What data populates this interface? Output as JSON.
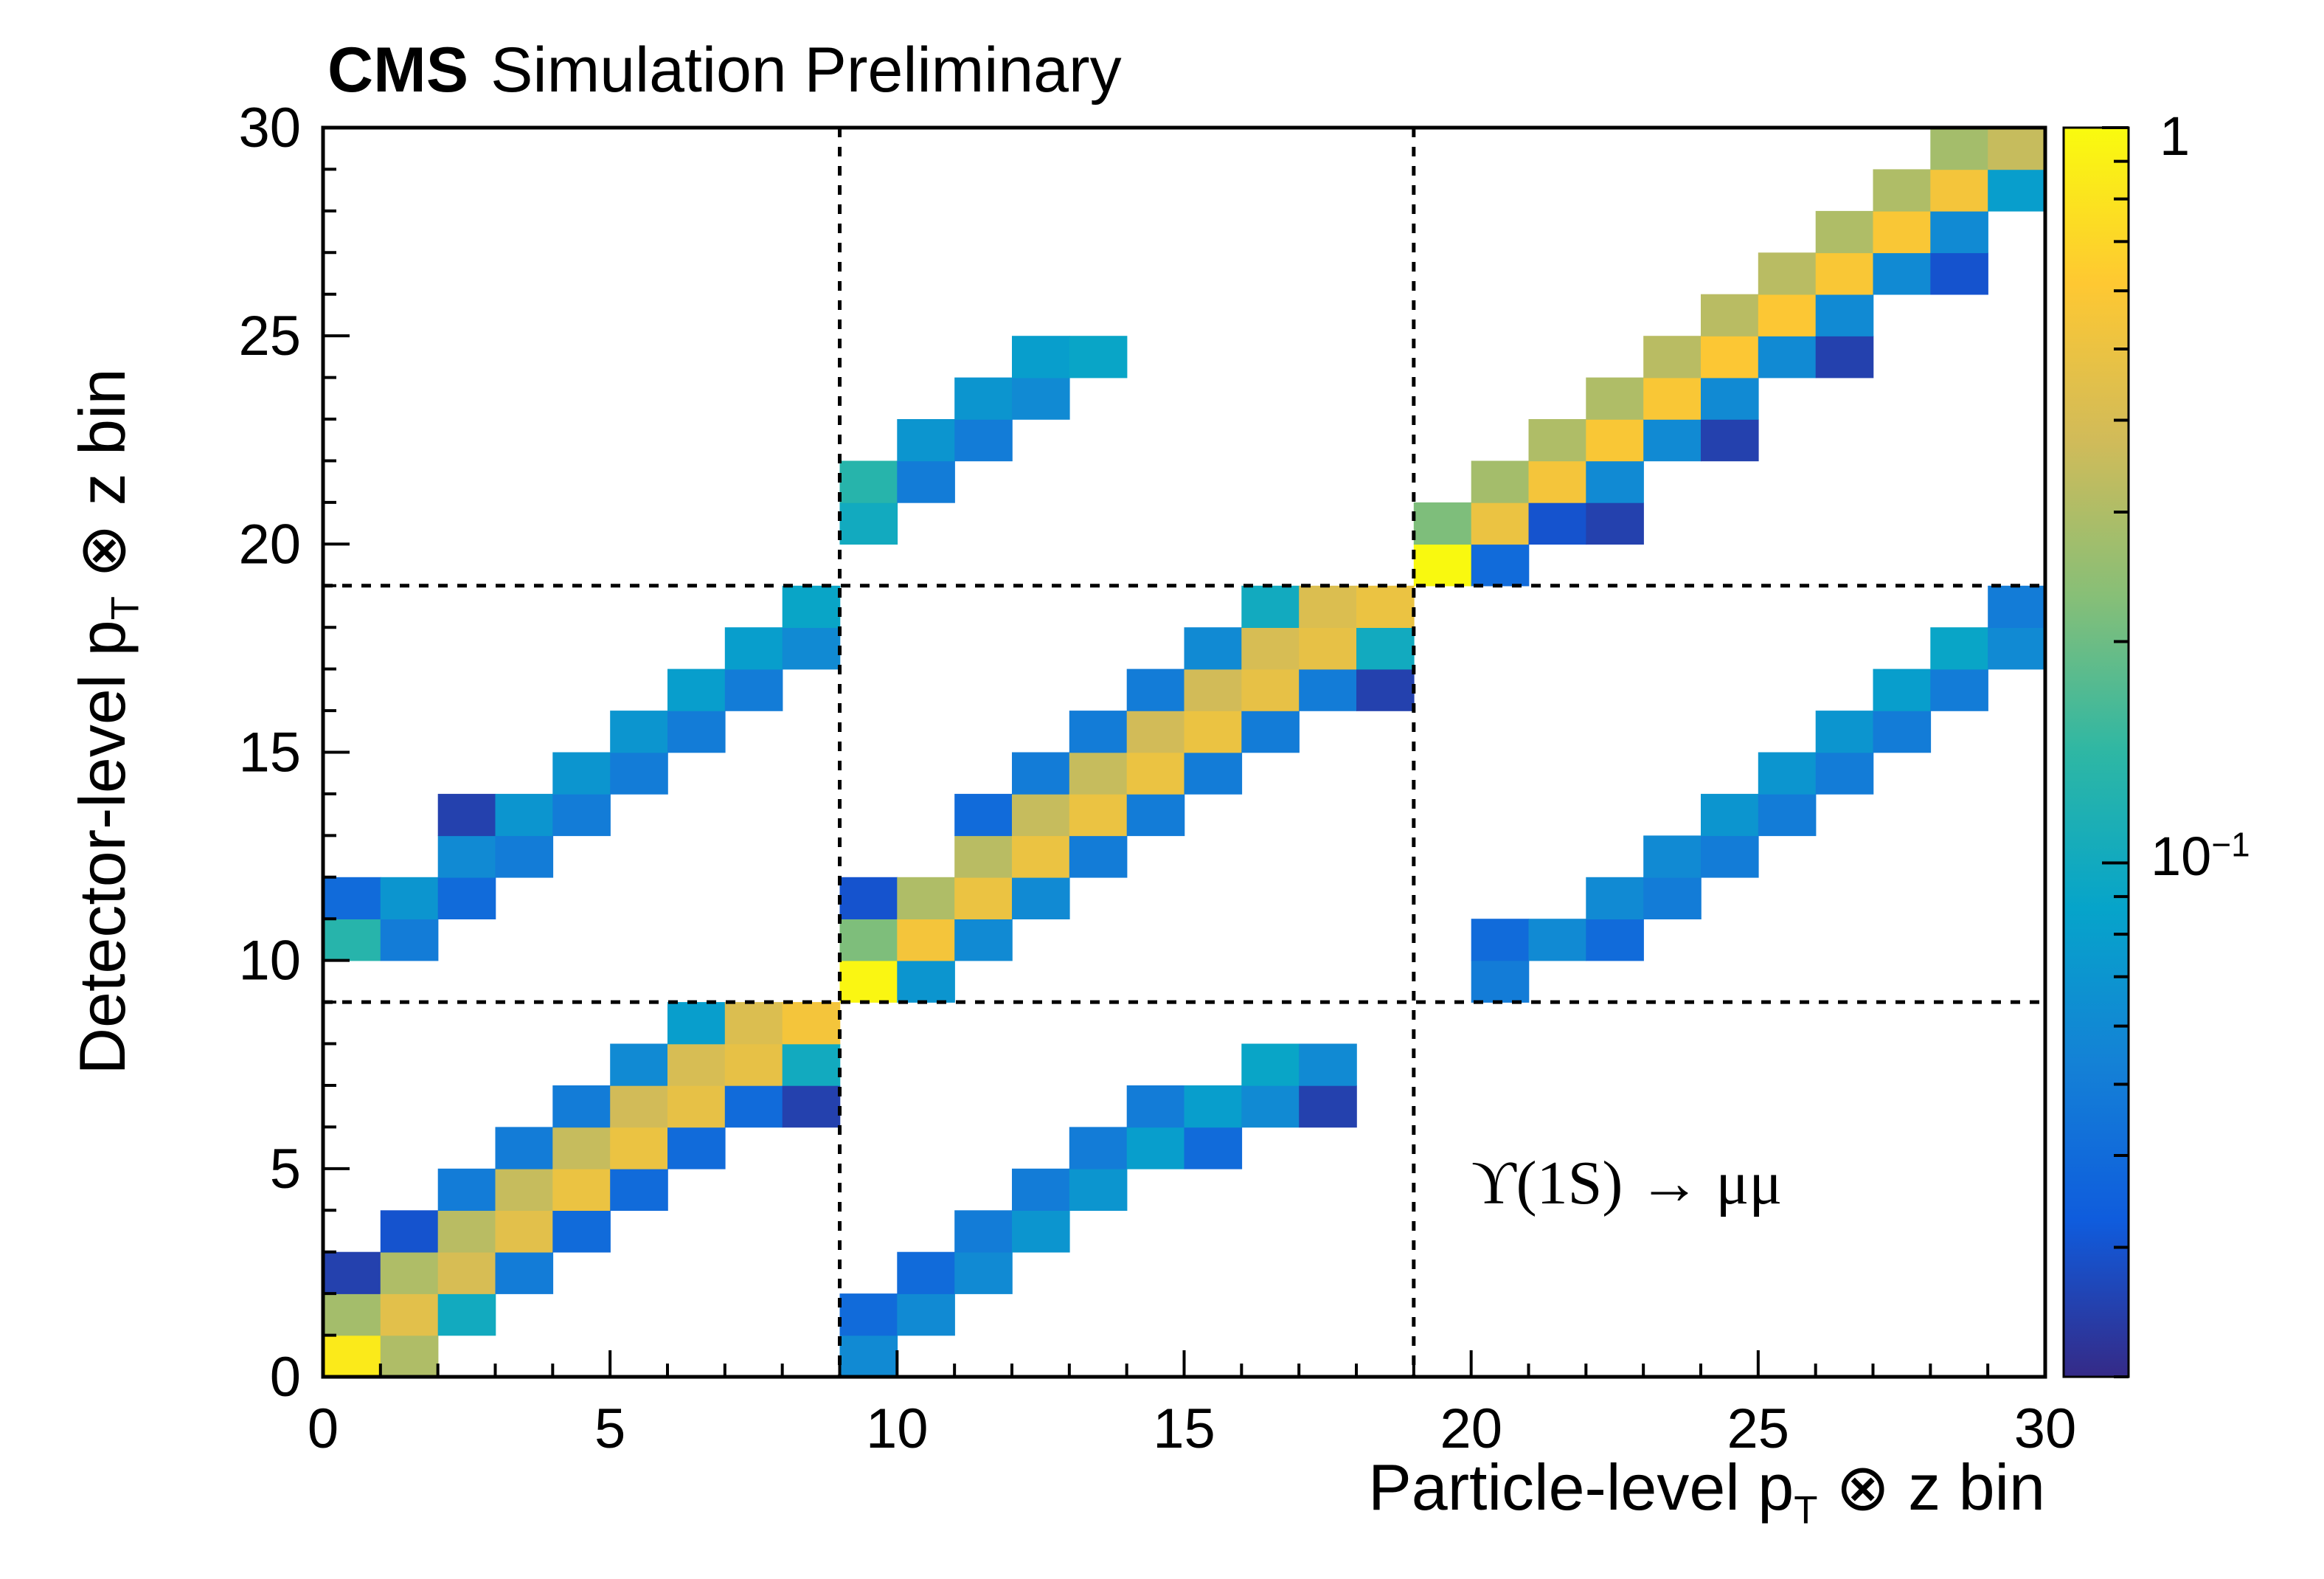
{
  "title": {
    "brand": "CMS",
    "status": "Simulation Preliminary"
  },
  "annotation": "ϒ(1S) → μμ",
  "axes": {
    "x": {
      "label_main": "Particle-level p",
      "label_sub": "T",
      "label_rest": " ⊗ z bin",
      "min": 0,
      "max": 30,
      "major_ticks": [
        0,
        5,
        10,
        15,
        20,
        25,
        30
      ]
    },
    "y": {
      "label_main": "Detector-level p",
      "label_sub": "T",
      "label_rest": " ⊗ z bin",
      "min": 0,
      "max": 30,
      "major_ticks": [
        0,
        5,
        10,
        15,
        20,
        25,
        30
      ]
    },
    "z": {
      "scale": "log",
      "min": 0.02,
      "max": 1,
      "top_label": "1",
      "mid_base": "10",
      "mid_exp": "−1"
    }
  },
  "chart_data": {
    "type": "heatmap",
    "title": "CMS Simulation Preliminary",
    "xlabel": "Particle-level p_T ⊗ z bin",
    "ylabel": "Detector-level p_T ⊗ z bin",
    "annotation": "Υ(1S) → μμ",
    "x_range": [
      0,
      30
    ],
    "y_range": [
      0,
      30
    ],
    "n_bins": 30,
    "grid": false,
    "block_boundaries": [
      9,
      19
    ],
    "color_scale": {
      "type": "log",
      "min": 0.02,
      "max": 1,
      "palette": [
        "#352A87",
        "#0F5CDD",
        "#1481D6",
        "#06A4CA",
        "#2EB7A4",
        "#87BF77",
        "#D1BB59",
        "#FEC832",
        "#F9FB0E"
      ]
    },
    "cells": [
      [
        0,
        0,
        0.85
      ],
      [
        0,
        1,
        0.28
      ],
      [
        0,
        2,
        0.025
      ],
      [
        1,
        0,
        0.3
      ],
      [
        1,
        1,
        0.45
      ],
      [
        1,
        2,
        0.3
      ],
      [
        1,
        3,
        0.03
      ],
      [
        2,
        1,
        0.1
      ],
      [
        2,
        2,
        0.4
      ],
      [
        2,
        3,
        0.32
      ],
      [
        2,
        4,
        0.05
      ],
      [
        3,
        2,
        0.05
      ],
      [
        3,
        3,
        0.45
      ],
      [
        3,
        4,
        0.35
      ],
      [
        3,
        5,
        0.05
      ],
      [
        4,
        3,
        0.04
      ],
      [
        4,
        4,
        0.5
      ],
      [
        4,
        5,
        0.35
      ],
      [
        4,
        6,
        0.05
      ],
      [
        5,
        4,
        0.04
      ],
      [
        5,
        5,
        0.5
      ],
      [
        5,
        6,
        0.38
      ],
      [
        5,
        7,
        0.06
      ],
      [
        6,
        5,
        0.04
      ],
      [
        6,
        6,
        0.48
      ],
      [
        6,
        7,
        0.4
      ],
      [
        6,
        8,
        0.08
      ],
      [
        7,
        6,
        0.04
      ],
      [
        7,
        7,
        0.48
      ],
      [
        7,
        8,
        0.42
      ],
      [
        8,
        6,
        0.025
      ],
      [
        8,
        7,
        0.1
      ],
      [
        8,
        8,
        0.55
      ],
      [
        9,
        0,
        0.06
      ],
      [
        9,
        1,
        0.04
      ],
      [
        10,
        1,
        0.06
      ],
      [
        10,
        2,
        0.04
      ],
      [
        11,
        2,
        0.06
      ],
      [
        11,
        3,
        0.05
      ],
      [
        12,
        3,
        0.07
      ],
      [
        12,
        4,
        0.05
      ],
      [
        13,
        4,
        0.07
      ],
      [
        13,
        5,
        0.05
      ],
      [
        14,
        5,
        0.08
      ],
      [
        14,
        6,
        0.05
      ],
      [
        15,
        5,
        0.04
      ],
      [
        15,
        6,
        0.08
      ],
      [
        16,
        6,
        0.06
      ],
      [
        16,
        7,
        0.09
      ],
      [
        17,
        6,
        0.025
      ],
      [
        17,
        7,
        0.06
      ],
      [
        0,
        10,
        0.13
      ],
      [
        0,
        11,
        0.04
      ],
      [
        1,
        10,
        0.05
      ],
      [
        1,
        11,
        0.07
      ],
      [
        2,
        11,
        0.04
      ],
      [
        2,
        12,
        0.06
      ],
      [
        2,
        13,
        0.025
      ],
      [
        3,
        12,
        0.05
      ],
      [
        3,
        13,
        0.07
      ],
      [
        4,
        13,
        0.05
      ],
      [
        4,
        14,
        0.07
      ],
      [
        5,
        14,
        0.05
      ],
      [
        5,
        15,
        0.07
      ],
      [
        6,
        15,
        0.05
      ],
      [
        6,
        16,
        0.08
      ],
      [
        7,
        16,
        0.05
      ],
      [
        7,
        17,
        0.08
      ],
      [
        8,
        17,
        0.06
      ],
      [
        8,
        18,
        0.09
      ],
      [
        9,
        9,
        0.95
      ],
      [
        9,
        10,
        0.22
      ],
      [
        9,
        11,
        0.03
      ],
      [
        10,
        9,
        0.07
      ],
      [
        10,
        10,
        0.55
      ],
      [
        10,
        11,
        0.3
      ],
      [
        11,
        10,
        0.06
      ],
      [
        11,
        11,
        0.5
      ],
      [
        11,
        12,
        0.32
      ],
      [
        11,
        13,
        0.04
      ],
      [
        12,
        11,
        0.06
      ],
      [
        12,
        12,
        0.5
      ],
      [
        12,
        13,
        0.35
      ],
      [
        12,
        14,
        0.05
      ],
      [
        13,
        12,
        0.05
      ],
      [
        13,
        13,
        0.5
      ],
      [
        13,
        14,
        0.35
      ],
      [
        13,
        15,
        0.05
      ],
      [
        14,
        13,
        0.05
      ],
      [
        14,
        14,
        0.5
      ],
      [
        14,
        15,
        0.38
      ],
      [
        14,
        16,
        0.05
      ],
      [
        15,
        14,
        0.05
      ],
      [
        15,
        15,
        0.5
      ],
      [
        15,
        16,
        0.38
      ],
      [
        15,
        17,
        0.06
      ],
      [
        16,
        15,
        0.05
      ],
      [
        16,
        16,
        0.48
      ],
      [
        16,
        17,
        0.4
      ],
      [
        16,
        18,
        0.1
      ],
      [
        17,
        16,
        0.05
      ],
      [
        17,
        17,
        0.48
      ],
      [
        17,
        18,
        0.42
      ],
      [
        18,
        16,
        0.025
      ],
      [
        18,
        17,
        0.1
      ],
      [
        18,
        18,
        0.5
      ],
      [
        9,
        20,
        0.1
      ],
      [
        9,
        21,
        0.13
      ],
      [
        10,
        21,
        0.05
      ],
      [
        10,
        22,
        0.07
      ],
      [
        11,
        22,
        0.05
      ],
      [
        11,
        23,
        0.07
      ],
      [
        12,
        23,
        0.06
      ],
      [
        12,
        24,
        0.08
      ],
      [
        13,
        24,
        0.09
      ],
      [
        20,
        9,
        0.05
      ],
      [
        20,
        10,
        0.04
      ],
      [
        21,
        10,
        0.06
      ],
      [
        22,
        10,
        0.04
      ],
      [
        22,
        11,
        0.06
      ],
      [
        23,
        11,
        0.05
      ],
      [
        23,
        12,
        0.06
      ],
      [
        24,
        12,
        0.05
      ],
      [
        24,
        13,
        0.07
      ],
      [
        25,
        13,
        0.05
      ],
      [
        25,
        14,
        0.07
      ],
      [
        26,
        14,
        0.05
      ],
      [
        26,
        15,
        0.07
      ],
      [
        27,
        15,
        0.05
      ],
      [
        27,
        16,
        0.08
      ],
      [
        28,
        16,
        0.05
      ],
      [
        28,
        17,
        0.09
      ],
      [
        29,
        17,
        0.06
      ],
      [
        29,
        18,
        0.05
      ],
      [
        19,
        19,
        0.98
      ],
      [
        19,
        20,
        0.22
      ],
      [
        20,
        19,
        0.04
      ],
      [
        20,
        20,
        0.5
      ],
      [
        20,
        21,
        0.28
      ],
      [
        21,
        20,
        0.03
      ],
      [
        21,
        21,
        0.55
      ],
      [
        21,
        22,
        0.3
      ],
      [
        22,
        20,
        0.025
      ],
      [
        22,
        21,
        0.06
      ],
      [
        22,
        22,
        0.58
      ],
      [
        22,
        23,
        0.3
      ],
      [
        23,
        22,
        0.06
      ],
      [
        23,
        23,
        0.58
      ],
      [
        23,
        24,
        0.32
      ],
      [
        24,
        22,
        0.025
      ],
      [
        24,
        23,
        0.06
      ],
      [
        24,
        24,
        0.6
      ],
      [
        24,
        25,
        0.32
      ],
      [
        25,
        24,
        0.06
      ],
      [
        25,
        25,
        0.6
      ],
      [
        25,
        26,
        0.32
      ],
      [
        26,
        24,
        0.025
      ],
      [
        26,
        25,
        0.06
      ],
      [
        26,
        26,
        0.58
      ],
      [
        26,
        27,
        0.3
      ],
      [
        27,
        26,
        0.06
      ],
      [
        27,
        27,
        0.58
      ],
      [
        27,
        28,
        0.3
      ],
      [
        28,
        26,
        0.03
      ],
      [
        28,
        27,
        0.06
      ],
      [
        28,
        28,
        0.55
      ],
      [
        28,
        29,
        0.28
      ],
      [
        29,
        28,
        0.08
      ],
      [
        29,
        29,
        0.35
      ]
    ]
  }
}
